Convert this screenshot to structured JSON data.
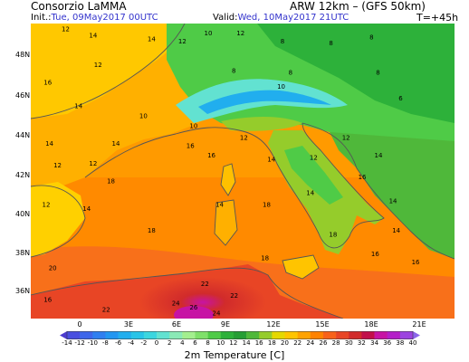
{
  "header": {
    "producer": "Consorzio LaMMA",
    "model": "ARW 12km  –  (GFS 50km)",
    "init_prefix": "Init.:",
    "init_value": "Tue, 09May2017 00UTC",
    "valid_prefix": "Valid:",
    "valid_value": "Wed, 10May2017 21UTC",
    "forecast_step": "T=+45h"
  },
  "map": {
    "region": "Italy and western Mediterranean",
    "lat_labels": [
      "48N",
      "46N",
      "44N",
      "42N",
      "40N",
      "38N",
      "36N"
    ],
    "lon_labels": [
      "0",
      "3E",
      "6E",
      "9E",
      "12E",
      "15E",
      "18E",
      "21E"
    ],
    "land_outline_color": "#555555",
    "temperature_labels": [
      {
        "t": "12",
        "lon": 0.0,
        "lat": 49.1
      },
      {
        "t": "14",
        "lon": 1.7,
        "lat": 48.8
      },
      {
        "t": "14",
        "lon": 5.3,
        "lat": 48.6
      },
      {
        "t": "12",
        "lon": 7.2,
        "lat": 48.5
      },
      {
        "t": "10",
        "lon": 8.8,
        "lat": 48.9
      },
      {
        "t": "12",
        "lon": 10.8,
        "lat": 48.9
      },
      {
        "t": "8",
        "lon": 13.5,
        "lat": 48.5
      },
      {
        "t": "8",
        "lon": 16.5,
        "lat": 48.4
      },
      {
        "t": "8",
        "lon": 19.0,
        "lat": 48.7
      },
      {
        "t": "12",
        "lon": 2.0,
        "lat": 47.3
      },
      {
        "t": "16",
        "lon": -1.1,
        "lat": 46.4
      },
      {
        "t": "8",
        "lon": 10.5,
        "lat": 47.0
      },
      {
        "t": "8",
        "lon": 14.0,
        "lat": 46.9
      },
      {
        "t": "8",
        "lon": 19.4,
        "lat": 46.9
      },
      {
        "t": "10",
        "lon": 13.3,
        "lat": 46.2
      },
      {
        "t": "6",
        "lon": 20.8,
        "lat": 45.6
      },
      {
        "t": "14",
        "lon": 0.8,
        "lat": 45.2
      },
      {
        "t": "10",
        "lon": 4.8,
        "lat": 44.7
      },
      {
        "t": "10",
        "lon": 7.9,
        "lat": 44.2
      },
      {
        "t": "16",
        "lon": 7.7,
        "lat": 43.2
      },
      {
        "t": "14",
        "lon": -1.0,
        "lat": 43.3
      },
      {
        "t": "14",
        "lon": 3.1,
        "lat": 43.3
      },
      {
        "t": "12",
        "lon": 1.7,
        "lat": 42.3
      },
      {
        "t": "12",
        "lon": -0.5,
        "lat": 42.2
      },
      {
        "t": "12",
        "lon": 11.0,
        "lat": 43.6
      },
      {
        "t": "16",
        "lon": 9.0,
        "lat": 42.7
      },
      {
        "t": "14",
        "lon": 12.7,
        "lat": 42.5
      },
      {
        "t": "12",
        "lon": 15.3,
        "lat": 42.6
      },
      {
        "t": "12",
        "lon": 17.3,
        "lat": 43.6
      },
      {
        "t": "14",
        "lon": 19.3,
        "lat": 42.7
      },
      {
        "t": "14",
        "lon": 1.3,
        "lat": 40.0
      },
      {
        "t": "18",
        "lon": 2.8,
        "lat": 41.4
      },
      {
        "t": "12",
        "lon": -1.2,
        "lat": 40.2
      },
      {
        "t": "14",
        "lon": 9.5,
        "lat": 40.2
      },
      {
        "t": "18",
        "lon": 12.4,
        "lat": 40.2
      },
      {
        "t": "14",
        "lon": 15.1,
        "lat": 40.8
      },
      {
        "t": "16",
        "lon": 18.3,
        "lat": 41.6
      },
      {
        "t": "14",
        "lon": 20.2,
        "lat": 40.4
      },
      {
        "t": "18",
        "lon": 5.3,
        "lat": 38.9
      },
      {
        "t": "18",
        "lon": 16.5,
        "lat": 38.7
      },
      {
        "t": "14",
        "lon": 20.4,
        "lat": 38.9
      },
      {
        "t": "16",
        "lon": 19.1,
        "lat": 37.7
      },
      {
        "t": "18",
        "lon": 12.3,
        "lat": 37.5
      },
      {
        "t": "20",
        "lon": -0.8,
        "lat": 37.0
      },
      {
        "t": "16",
        "lon": 21.6,
        "lat": 37.3
      },
      {
        "t": "22",
        "lon": 8.6,
        "lat": 36.2
      },
      {
        "t": "24",
        "lon": 6.8,
        "lat": 35.2
      },
      {
        "t": "26",
        "lon": 7.9,
        "lat": 35.0
      },
      {
        "t": "22",
        "lon": 10.4,
        "lat": 35.6
      },
      {
        "t": "24",
        "lon": 9.3,
        "lat": 34.7
      },
      {
        "t": "16",
        "lon": -1.1,
        "lat": 35.4
      },
      {
        "t": "22",
        "lon": 2.5,
        "lat": 34.9
      }
    ]
  },
  "colorbar": {
    "title": "2m Temperature [C]",
    "labels": [
      "-14",
      "-12",
      "-10",
      "-8",
      "-6",
      "-4",
      "-2",
      "0",
      "2",
      "4",
      "6",
      "8",
      "10",
      "12",
      "14",
      "16",
      "18",
      "20",
      "22",
      "24",
      "26",
      "28",
      "30",
      "32",
      "34",
      "36",
      "38",
      "40"
    ],
    "colors": [
      "#4d3bcf",
      "#4a4fe0",
      "#3e66ea",
      "#2f7ff0",
      "#2296f1",
      "#21aeee",
      "#27c4e8",
      "#3bd6df",
      "#62e2d1",
      "#8aeab6",
      "#a3ef8e",
      "#7fe06a",
      "#4fcb47",
      "#2db13a",
      "#269e35",
      "#4fb83a",
      "#95cc2b",
      "#e5d800",
      "#ffc400",
      "#ffa200",
      "#ff8200",
      "#f8621a",
      "#e84525",
      "#d12b2b",
      "#c20f4a",
      "#c713a4",
      "#b41ec8",
      "#9c43e0",
      "#8c65ea"
    ]
  }
}
